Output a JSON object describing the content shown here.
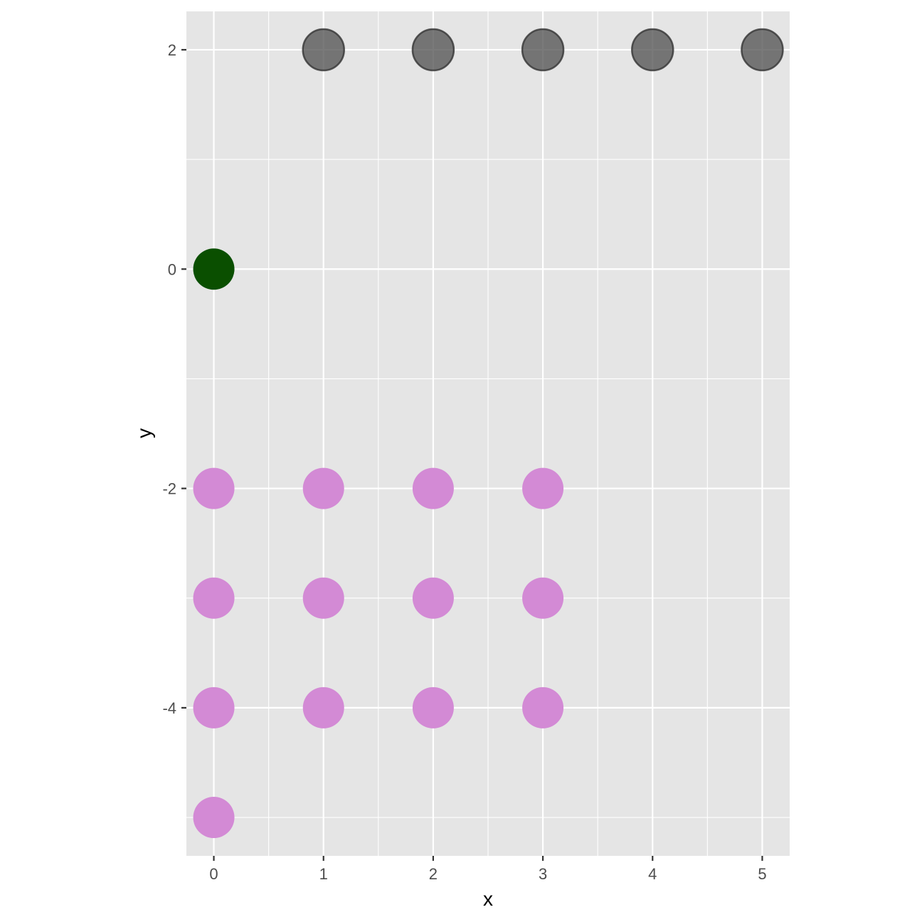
{
  "chart_data": {
    "type": "scatter",
    "xlabel": "x",
    "ylabel": "y",
    "xlim": [
      -0.25,
      5.25
    ],
    "ylim": [
      -5.35,
      2.35
    ],
    "x_ticks": [
      0,
      1,
      2,
      3,
      4,
      5
    ],
    "y_ticks": [
      -4,
      -2,
      0,
      2
    ],
    "grid": true,
    "legend": "none",
    "panel_background": "#e5e5e5",
    "grid_color": "#ffffff",
    "series": [
      {
        "color": "#d38ad5",
        "opacity": 1,
        "outline": false,
        "points": [
          {
            "x": 0,
            "y": -2
          },
          {
            "x": 1,
            "y": -2
          },
          {
            "x": 2,
            "y": -2
          },
          {
            "x": 3,
            "y": -2
          },
          {
            "x": 0,
            "y": -3
          },
          {
            "x": 1,
            "y": -3
          },
          {
            "x": 2,
            "y": -3
          },
          {
            "x": 3,
            "y": -3
          },
          {
            "x": 0,
            "y": -4
          },
          {
            "x": 1,
            "y": -4
          },
          {
            "x": 2,
            "y": -4
          },
          {
            "x": 3,
            "y": -4
          },
          {
            "x": 0,
            "y": -5
          }
        ]
      },
      {
        "color": "#0a4f00",
        "opacity": 1,
        "outline": false,
        "points": [
          {
            "x": 0,
            "y": 0
          }
        ]
      },
      {
        "color": "#4d4d4d",
        "opacity": 0.75,
        "outline": true,
        "points": [
          {
            "x": 1,
            "y": 2
          },
          {
            "x": 2,
            "y": 2
          },
          {
            "x": 3,
            "y": 2
          },
          {
            "x": 4,
            "y": 2
          },
          {
            "x": 5,
            "y": 2
          }
        ]
      }
    ]
  }
}
